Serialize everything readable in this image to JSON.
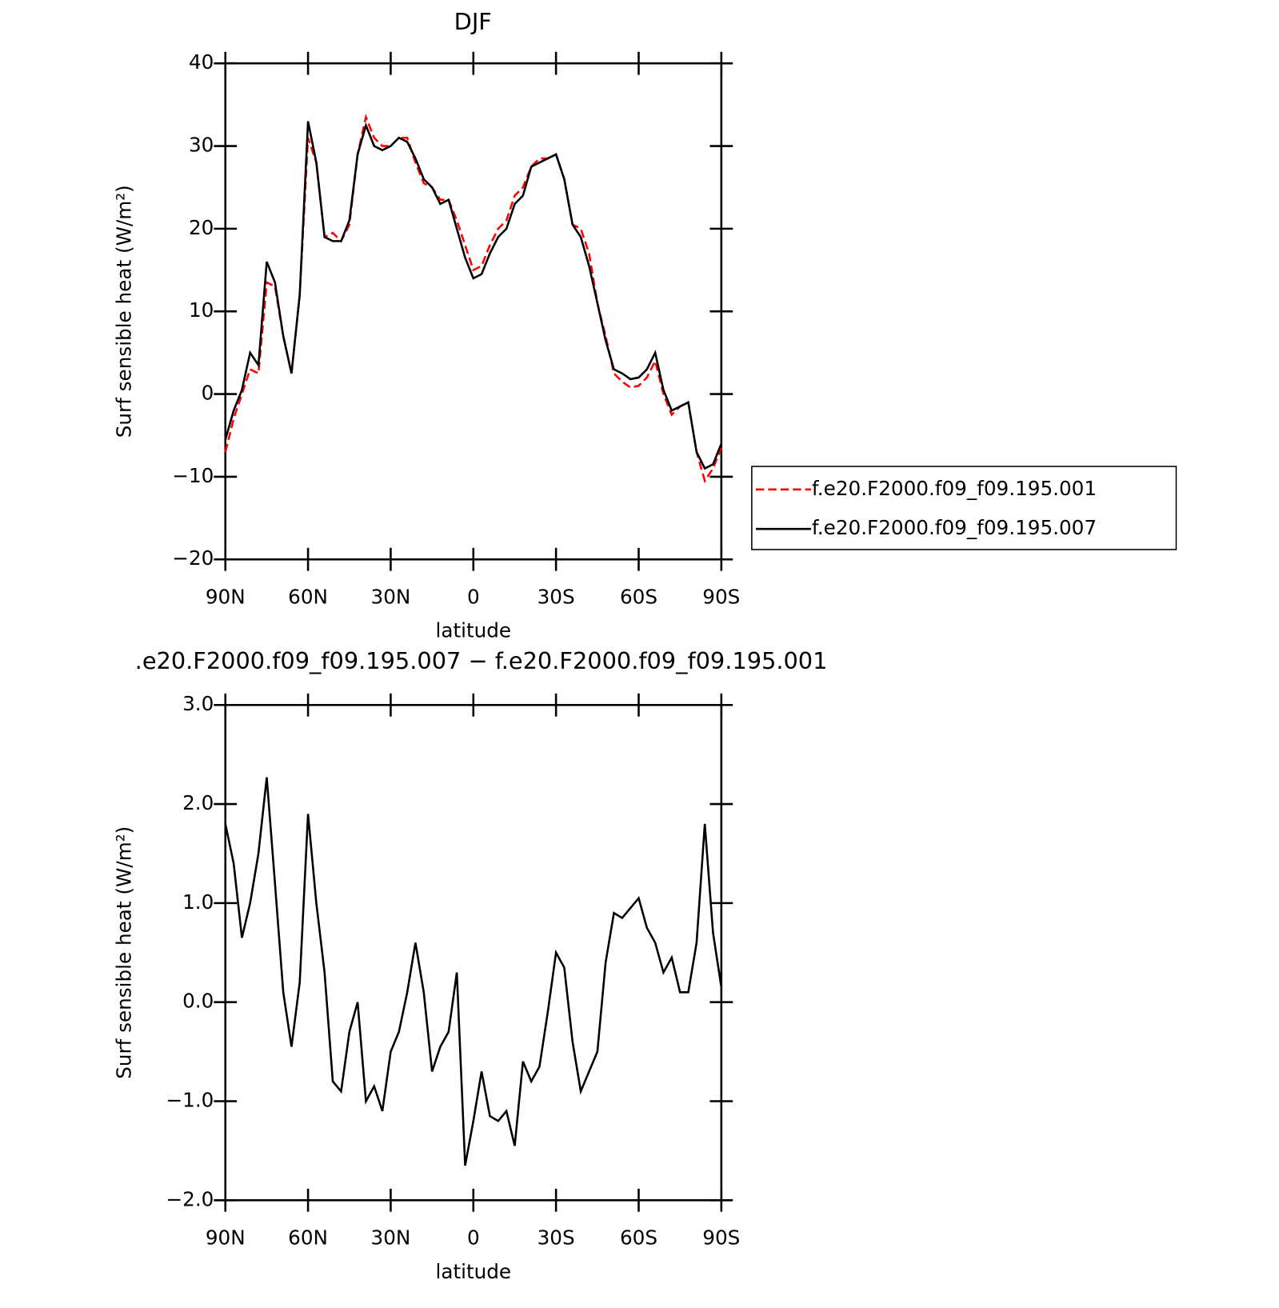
{
  "chart_data": [
    {
      "type": "line",
      "title": "DJF",
      "xlabel": "latitude",
      "ylabel": "Surf sensible heat (W/m²)",
      "x": [
        90,
        87,
        84,
        81,
        78,
        75,
        72,
        69,
        66,
        63,
        60,
        57,
        54,
        51,
        48,
        45,
        42,
        39,
        36,
        33,
        30,
        27,
        24,
        21,
        18,
        15,
        12,
        9,
        6,
        3,
        0,
        -3,
        -6,
        -9,
        -12,
        -15,
        -18,
        -21,
        -24,
        -27,
        -30,
        -33,
        -36,
        -39,
        -42,
        -45,
        -48,
        -51,
        -54,
        -57,
        -60,
        -63,
        -66,
        -69,
        -72,
        -75,
        -78,
        -81,
        -84,
        -87,
        -90
      ],
      "series": [
        {
          "name": "f.e20.F2000.f09_f09.195.001",
          "color": "#ff0000",
          "dash": true,
          "values": [
            -7,
            -3,
            0,
            3,
            2.5,
            13.5,
            13,
            7,
            2.5,
            12,
            31,
            28,
            19,
            19.5,
            18.5,
            20.5,
            29,
            33.5,
            31,
            30,
            30,
            31,
            31,
            28,
            25.5,
            25,
            23.5,
            23.5,
            21,
            18,
            15,
            15.5,
            18,
            20,
            21,
            24,
            25,
            27.5,
            28.5,
            28.5,
            29,
            26,
            20.5,
            20,
            17,
            11,
            7,
            2.5,
            1.5,
            0.8,
            1,
            2,
            4,
            0,
            -2.5,
            -1.5,
            -1,
            -7,
            -10.5,
            -9,
            -6.5
          ]
        },
        {
          "name": "f.e20.F2000.f09_f09.195.007",
          "color": "#000000",
          "dash": false,
          "values": [
            -5.5,
            -2,
            0.5,
            5,
            3.5,
            16,
            13.5,
            7,
            2.5,
            12,
            33,
            28,
            19,
            18.5,
            18.5,
            21,
            29,
            32.5,
            30,
            29.5,
            30,
            31,
            30.5,
            28.5,
            26,
            25,
            23,
            23.5,
            20,
            16.5,
            14,
            14.5,
            17,
            19,
            20,
            23,
            24,
            27.5,
            28,
            28.5,
            29,
            26,
            20.5,
            19,
            15.5,
            11,
            6.5,
            3,
            2.5,
            1.8,
            2,
            3,
            5,
            0.5,
            -2,
            -1.5,
            -1,
            -7,
            -9,
            -8.5,
            -6
          ]
        }
      ],
      "xlim": [
        90,
        -90
      ],
      "xticks": [
        {
          "value": 90,
          "label": "90N"
        },
        {
          "value": 60,
          "label": "60N"
        },
        {
          "value": 30,
          "label": "30N"
        },
        0,
        {
          "value": -30,
          "label": "30S"
        },
        {
          "value": -60,
          "label": "60S"
        },
        {
          "value": -90,
          "label": "90S"
        }
      ],
      "ylim": [
        -20,
        40
      ],
      "yticks": [
        {
          "value": -20,
          "label": "−20"
        },
        {
          "value": -10,
          "label": "−10"
        },
        0,
        10,
        20,
        30,
        40
      ],
      "legend": "right"
    },
    {
      "type": "line",
      "title": ".e20.F2000.f09_f09.195.007 − f.e20.F2000.f09_f09.195.001",
      "xlabel": "latitude",
      "ylabel": "Surf sensible heat (W/m²)",
      "x": [
        90,
        87,
        84,
        81,
        78,
        75,
        72,
        69,
        66,
        63,
        60,
        57,
        54,
        51,
        48,
        45,
        42,
        39,
        36,
        33,
        30,
        27,
        24,
        21,
        18,
        15,
        12,
        9,
        6,
        3,
        0,
        -3,
        -6,
        -9,
        -12,
        -15,
        -18,
        -21,
        -24,
        -27,
        -30,
        -33,
        -36,
        -39,
        -42,
        -45,
        -48,
        -51,
        -54,
        -57,
        -60,
        -63,
        -66,
        -69,
        -72,
        -75,
        -78,
        -81,
        -84,
        -87,
        -90
      ],
      "color": "#000000",
      "values": [
        1.8,
        1.4,
        0.65,
        1.0,
        1.5,
        2.27,
        1.2,
        0.1,
        -0.45,
        0.2,
        1.9,
        1.0,
        0.3,
        -0.8,
        -0.9,
        -0.3,
        0.0,
        -1.0,
        -0.85,
        -1.1,
        -0.5,
        -0.3,
        0.1,
        0.6,
        0.1,
        -0.7,
        -0.45,
        -0.3,
        0.3,
        -1.65,
        -1.2,
        -0.7,
        -1.15,
        -1.2,
        -1.1,
        -1.45,
        -0.6,
        -0.8,
        -0.65,
        -0.1,
        0.5,
        0.35,
        -0.4,
        -0.9,
        -0.7,
        -0.5,
        0.4,
        0.9,
        0.85,
        0.95,
        1.05,
        0.75,
        0.6,
        0.3,
        0.45,
        0.1,
        0.1,
        0.6,
        1.8,
        0.7,
        0.15
      ],
      "xlim": [
        90,
        -90
      ],
      "xticks": [
        {
          "value": 90,
          "label": "90N"
        },
        {
          "value": 60,
          "label": "60N"
        },
        {
          "value": 30,
          "label": "30N"
        },
        0,
        {
          "value": -30,
          "label": "30S"
        },
        {
          "value": -60,
          "label": "60S"
        },
        {
          "value": -90,
          "label": "90S"
        }
      ],
      "ylim": [
        -2,
        3
      ],
      "yticks": [
        {
          "value": -2,
          "label": "−2.0"
        },
        {
          "value": -1,
          "label": "−1.0"
        },
        {
          "value": 0,
          "label": "0.0"
        },
        {
          "value": 1,
          "label": "1.0"
        },
        {
          "value": 2,
          "label": "2.0"
        },
        {
          "value": 3,
          "label": "3.0"
        }
      ]
    }
  ]
}
